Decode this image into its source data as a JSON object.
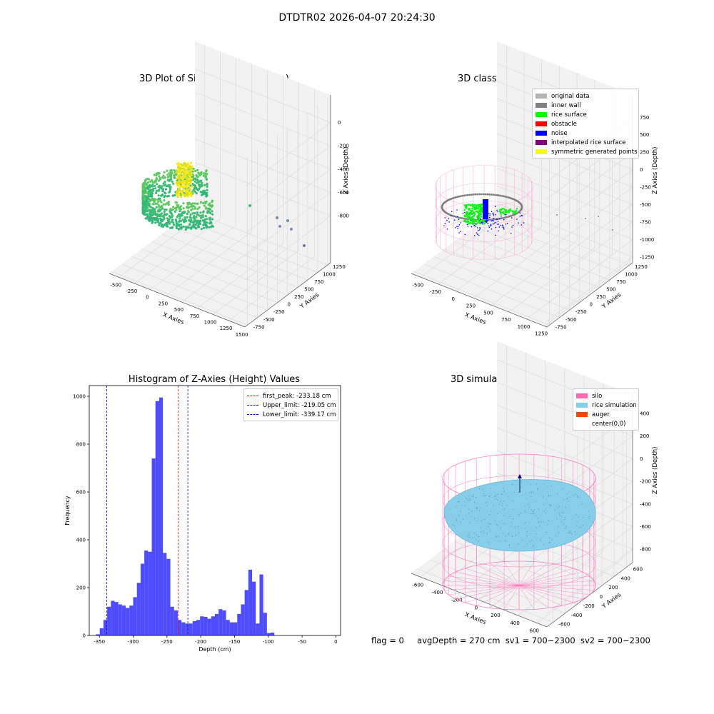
{
  "figure": {
    "suptitle": "DTDTR02 2026-04-07 20:24:30",
    "status": {
      "flag": "flag = 0",
      "avg_depth": "avgDepth = 270 cm",
      "sv1": "sv1 = 700~2300",
      "sv2": "sv2 = 700~2300"
    }
  },
  "colors": {
    "pane": "#f2f2f2",
    "pane_side": "#ebebeb",
    "grid": "#dcdcdc",
    "hist_bar": "#4d4dff",
    "peak_line": "#ff0000",
    "limit_line": "#0000ff",
    "original_data": "#b3b3b3",
    "inner_wall": "#808080",
    "rice_surface": "#00ff00",
    "obstacle": "#ff0000",
    "noise": "#0000ff",
    "interpolated_rice_surface": "#800080",
    "symmetric_generated_points": "#ffff00",
    "silo": "#ff69b4",
    "rice_simulation": "#87ceeb",
    "auger": "#ff4500",
    "center": "#ffffff"
  },
  "chart_data": [
    {
      "type": "scatter",
      "id": "raw",
      "title": "3D Plot of Silo Interior(row data)",
      "xlabel": "X Axies",
      "ylabel": "Y Axies",
      "zlabel": "Z Axies (Depth)",
      "x_ticks": [
        "-500",
        "-250",
        "0",
        "250",
        "500",
        "750",
        "1000",
        "1250",
        "1500"
      ],
      "y_ticks": [
        "-750",
        "-500",
        "-250",
        "0",
        "250",
        "500",
        "750",
        "1000",
        "1250"
      ],
      "z_ticks": [
        "-800",
        "-600",
        "-400",
        "-200",
        "0"
      ],
      "xlim": [
        -600,
        1550
      ],
      "ylim": [
        -800,
        1350
      ],
      "zlim": [
        -900,
        50
      ]
    },
    {
      "type": "scatter",
      "id": "classify",
      "title": "3D classify of Silo Interior",
      "xlabel": "X Axies",
      "ylabel": "Y Axies",
      "zlabel": "Z Axies (Depth)",
      "x_ticks": [
        "-500",
        "-250",
        "0",
        "250",
        "500",
        "750",
        "1000",
        "1250"
      ],
      "y_ticks": [
        "-750",
        "-500",
        "-250",
        "0",
        "250",
        "500",
        "750",
        "1000",
        "1250"
      ],
      "z_ticks": [
        "-1250",
        "-1000",
        "-750",
        "-500",
        "-250",
        "0",
        "250",
        "500",
        "750"
      ],
      "xlim": [
        -600,
        1350
      ],
      "ylim": [
        -800,
        1350
      ],
      "zlim": [
        -1350,
        800
      ],
      "legend": [
        {
          "label": "original data",
          "color_key": "original_data"
        },
        {
          "label": "inner wall",
          "color_key": "inner_wall"
        },
        {
          "label": "rice surface",
          "color_key": "rice_surface"
        },
        {
          "label": "obstacle",
          "color_key": "obstacle"
        },
        {
          "label": "noise",
          "color_key": "noise"
        },
        {
          "label": "interpolated rice surface",
          "color_key": "interpolated_rice_surface"
        },
        {
          "label": "symmetric generated points",
          "color_key": "symmetric_generated_points"
        }
      ]
    },
    {
      "type": "bar",
      "id": "hist",
      "title": "Histogram of Z-Axies (Height) Values",
      "xlabel": "Depth (cm)",
      "ylabel": "Frequency",
      "xlim": [
        -365,
        7
      ],
      "ylim": [
        0,
        1045
      ],
      "x_ticks": [
        -350,
        -300,
        -250,
        -200,
        -150,
        -100,
        -50,
        0
      ],
      "y_ticks": [
        0,
        200,
        400,
        600,
        800,
        1000
      ],
      "bin_start": -355,
      "bin_width": 5.5,
      "values": [
        5,
        30,
        65,
        120,
        145,
        140,
        130,
        125,
        115,
        125,
        160,
        220,
        300,
        355,
        350,
        740,
        980,
        995,
        345,
        320,
        120,
        105,
        65,
        55,
        50,
        50,
        60,
        65,
        80,
        78,
        70,
        80,
        90,
        110,
        105,
        65,
        55,
        55,
        90,
        130,
        190,
        275,
        225,
        50,
        255,
        95,
        10,
        12
      ],
      "lines": [
        {
          "label": "first_peak: -233.18 cm",
          "value": -233.18,
          "color_key": "peak_line"
        },
        {
          "label": "Upper_limit: -219.05 cm",
          "value": -219.05,
          "color_key": "limit_line"
        },
        {
          "label": "Lower_limit: -339.17 cm",
          "value": -339.17,
          "color_key": "limit_line"
        }
      ]
    },
    {
      "type": "scatter",
      "id": "sim",
      "title": "3D simulation of Silo Interior",
      "xlabel": "X Axies",
      "ylabel": "Y Axies",
      "zlabel": "Z Axies (Depth)",
      "x_ticks": [
        "-600",
        "-400",
        "-200",
        "0",
        "200",
        "400",
        "600"
      ],
      "y_ticks": [
        "-600",
        "-400",
        "-200",
        "0",
        "200",
        "400",
        "600"
      ],
      "z_ticks": [
        "-800",
        "-600",
        "-400",
        "-200",
        "0",
        "200",
        "400"
      ],
      "xlim": [
        -650,
        650
      ],
      "ylim": [
        -650,
        650
      ],
      "zlim": [
        -900,
        450
      ],
      "legend": [
        {
          "label": "silo",
          "color_key": "silo"
        },
        {
          "label": "rice simulation",
          "color_key": "rice_simulation"
        },
        {
          "label": "auger",
          "color_key": "auger"
        },
        {
          "label": "center(0,0)",
          "color_key": "center"
        }
      ]
    }
  ]
}
